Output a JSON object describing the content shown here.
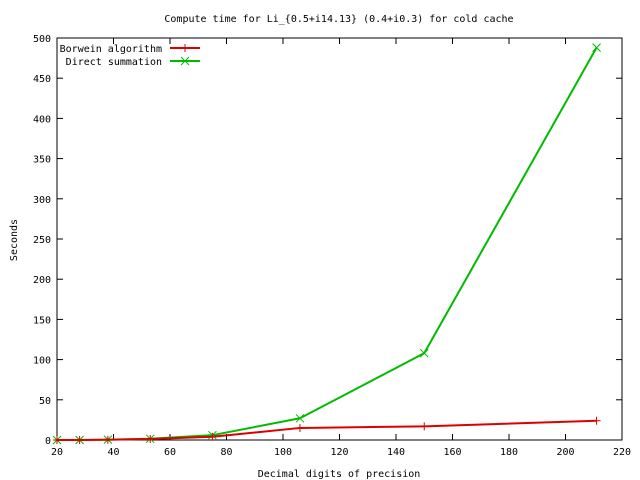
{
  "chart_data": {
    "type": "line",
    "title": "Compute time for Li_{0.5+i14.13} (0.4+i0.3) for cold cache",
    "xlabel": "Decimal digits of precision",
    "ylabel": "Seconds",
    "xlim": [
      20,
      220
    ],
    "ylim": [
      0,
      500
    ],
    "xticks": [
      20,
      40,
      60,
      80,
      100,
      120,
      140,
      160,
      180,
      200,
      220
    ],
    "yticks": [
      0,
      50,
      100,
      150,
      200,
      250,
      300,
      350,
      400,
      450,
      500
    ],
    "grid": false,
    "legend_position": "top-left",
    "series": [
      {
        "name": "Borwein algorithm",
        "color": "#dd0000",
        "marker": "plus",
        "x": [
          20,
          28,
          38,
          53,
          75,
          106,
          150,
          211
        ],
        "y": [
          0,
          0,
          0.3,
          1.2,
          4,
          15,
          17,
          24
        ]
      },
      {
        "name": "Direct summation",
        "color": "#00bb00",
        "marker": "cross",
        "x": [
          20,
          28,
          38,
          53,
          75,
          106,
          150,
          211
        ],
        "y": [
          0,
          0,
          0.5,
          1.5,
          6,
          27,
          108,
          488
        ]
      }
    ]
  }
}
